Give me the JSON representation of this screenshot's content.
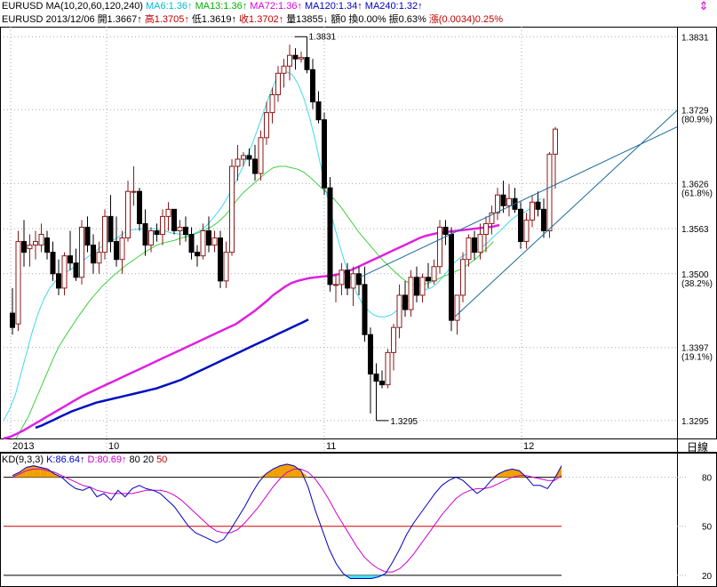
{
  "header": {
    "ma_title": "EURUSD MA(10,20,60,120,240)",
    "ma_values": [
      {
        "text": "MA6:1.36",
        "color": "#00bcd4"
      },
      {
        "text": "MA13:1.36",
        "color": "#00b000"
      },
      {
        "text": "MA72:1.36",
        "color": "#e000e0"
      },
      {
        "text": "MA120:1.34",
        "color": "#0000c0"
      },
      {
        "text": "MA240:1.32",
        "color": "#0000c0"
      }
    ],
    "quote": [
      {
        "text": "EURUSD 2013/12/06",
        "color": "#000000"
      },
      {
        "text": "開1.3667",
        "color": "#000000"
      },
      {
        "text": "高1.3705",
        "color": "#c00000"
      },
      {
        "text": "低1.3619",
        "color": "#000000"
      },
      {
        "text": "收1.3702",
        "color": "#c00000"
      },
      {
        "text": "量13855",
        "color": "#000000"
      },
      {
        "text": "額0",
        "color": "#000000"
      },
      {
        "text": "換0.00%",
        "color": "#000000"
      },
      {
        "text": "振0.63%",
        "color": "#000000"
      },
      {
        "text": "漲(0.0034)0.25%",
        "color": "#c00000"
      }
    ],
    "arrow_up": "↑",
    "arrow_down": "↓",
    "nav_icon": "chevron-up-down-icon",
    "nav_glyph": "⇕"
  },
  "kd": {
    "title": "KD(9,3,3)",
    "k": "K:86.64",
    "d": "D:80.69",
    "levels": "80 20 50",
    "k_color": "#0000c0",
    "d_color": "#d000d0",
    "levels_color": "#000000",
    "level50_color": "#c00000"
  },
  "daily_label": "日線",
  "colors": {
    "up": "#8b1a1a",
    "down": "#000000",
    "ma6": "#40d8f0",
    "ma13": "#40d040",
    "ma72": "#e020e0",
    "ma120": "#0010c0",
    "trend": "#1a6a9a",
    "fill_hi": "#f0a000",
    "fill_lo": "#40e0f0"
  },
  "chart_data": [
    {
      "type": "candlestick",
      "symbol": "EURUSD",
      "ylim": [
        1.327,
        1.3845
      ],
      "right_axis_ticks": [
        "1.3831",
        "1.3729",
        "(80.9%)",
        "1.3626",
        "(61.8%)",
        "1.3563",
        "1.3500",
        "(38.2%)",
        "1.3397",
        "(19.1%)",
        "1.3295"
      ],
      "x_labels": [
        "2013",
        "10",
        "11",
        "12"
      ],
      "annotations": [
        "1.3831",
        "1.3295"
      ],
      "candles": [
        [
          1.3445,
          1.348,
          1.3415,
          1.3425
        ],
        [
          1.343,
          1.356,
          1.342,
          1.3545
        ],
        [
          1.3545,
          1.3575,
          1.351,
          1.353
        ],
        [
          1.3535,
          1.3555,
          1.351,
          1.354
        ],
        [
          1.354,
          1.356,
          1.352,
          1.3545
        ],
        [
          1.354,
          1.357,
          1.353,
          1.3555
        ],
        [
          1.355,
          1.356,
          1.352,
          1.353
        ],
        [
          1.353,
          1.3545,
          1.349,
          1.35
        ],
        [
          1.35,
          1.352,
          1.347,
          1.348
        ],
        [
          1.348,
          1.353,
          1.347,
          1.3525
        ],
        [
          1.3525,
          1.356,
          1.3505,
          1.3515
        ],
        [
          1.3515,
          1.3535,
          1.349,
          1.3495
        ],
        [
          1.3495,
          1.3575,
          1.3485,
          1.3565
        ],
        [
          1.3565,
          1.358,
          1.353,
          1.354
        ],
        [
          1.354,
          1.3555,
          1.35,
          1.3515
        ],
        [
          1.3515,
          1.3545,
          1.35,
          1.353
        ],
        [
          1.353,
          1.359,
          1.352,
          1.358
        ],
        [
          1.358,
          1.361,
          1.353,
          1.3545
        ],
        [
          1.3545,
          1.358,
          1.351,
          1.352
        ],
        [
          1.352,
          1.356,
          1.35,
          1.355
        ],
        [
          1.355,
          1.363,
          1.3545,
          1.3615
        ],
        [
          1.3615,
          1.365,
          1.3595,
          1.3615
        ],
        [
          1.3615,
          1.362,
          1.356,
          1.357
        ],
        [
          1.357,
          1.359,
          1.3525,
          1.354
        ],
        [
          1.354,
          1.3565,
          1.353,
          1.356
        ],
        [
          1.356,
          1.357,
          1.3545,
          1.3555
        ],
        [
          1.3555,
          1.359,
          1.354,
          1.358
        ],
        [
          1.358,
          1.36,
          1.356,
          1.359
        ],
        [
          1.359,
          1.359,
          1.3555,
          1.356
        ],
        [
          1.356,
          1.3575,
          1.354,
          1.3565
        ],
        [
          1.3565,
          1.358,
          1.3545,
          1.3555
        ],
        [
          1.3555,
          1.3565,
          1.352,
          1.353
        ],
        [
          1.353,
          1.354,
          1.351,
          1.3525
        ],
        [
          1.3525,
          1.357,
          1.352,
          1.356
        ],
        [
          1.356,
          1.358,
          1.353,
          1.354
        ],
        [
          1.354,
          1.356,
          1.353,
          1.355
        ],
        [
          1.355,
          1.356,
          1.348,
          1.349
        ],
        [
          1.349,
          1.3545,
          1.348,
          1.353
        ],
        [
          1.353,
          1.366,
          1.3525,
          1.365
        ],
        [
          1.365,
          1.368,
          1.363,
          1.366
        ],
        [
          1.366,
          1.367,
          1.365,
          1.3665
        ],
        [
          1.3665,
          1.3675,
          1.365,
          1.366
        ],
        [
          1.366,
          1.368,
          1.363,
          1.364
        ],
        [
          1.364,
          1.37,
          1.363,
          1.369
        ],
        [
          1.369,
          1.374,
          1.368,
          1.3725
        ],
        [
          1.3725,
          1.376,
          1.371,
          1.375
        ],
        [
          1.375,
          1.379,
          1.374,
          1.378
        ],
        [
          1.378,
          1.38,
          1.376,
          1.379
        ],
        [
          1.379,
          1.382,
          1.377,
          1.3805
        ],
        [
          1.3805,
          1.3815,
          1.3785,
          1.38
        ],
        [
          1.38,
          1.381,
          1.3795,
          1.3802
        ],
        [
          1.3802,
          1.3831,
          1.378,
          1.3785
        ],
        [
          1.3785,
          1.38,
          1.373,
          1.374
        ],
        [
          1.374,
          1.3755,
          1.371,
          1.3715
        ],
        [
          1.3715,
          1.3725,
          1.361,
          1.362
        ],
        [
          1.362,
          1.3635,
          1.3475,
          1.3485
        ],
        [
          1.3485,
          1.35,
          1.346,
          1.3485
        ],
        [
          1.3485,
          1.3515,
          1.347,
          1.3505
        ],
        [
          1.3505,
          1.3515,
          1.347,
          1.348
        ],
        [
          1.348,
          1.351,
          1.3455,
          1.35
        ],
        [
          1.35,
          1.351,
          1.347,
          1.3485
        ],
        [
          1.3485,
          1.351,
          1.3405,
          1.3415
        ],
        [
          1.3415,
          1.3425,
          1.3305,
          1.336
        ],
        [
          1.336,
          1.3375,
          1.3295,
          1.335
        ],
        [
          1.335,
          1.3365,
          1.334,
          1.3345
        ],
        [
          1.3345,
          1.3395,
          1.334,
          1.339
        ],
        [
          1.339,
          1.343,
          1.3365,
          1.3425
        ],
        [
          1.3425,
          1.3485,
          1.341,
          1.347
        ],
        [
          1.347,
          1.349,
          1.344,
          1.345
        ],
        [
          1.345,
          1.3505,
          1.344,
          1.3495
        ],
        [
          1.3495,
          1.351,
          1.346,
          1.347
        ],
        [
          1.347,
          1.35,
          1.346,
          1.3495
        ],
        [
          1.3495,
          1.3515,
          1.348,
          1.349
        ],
        [
          1.349,
          1.352,
          1.3485,
          1.351
        ],
        [
          1.351,
          1.3575,
          1.35,
          1.3565
        ],
        [
          1.3565,
          1.3575,
          1.354,
          1.3555
        ],
        [
          1.3555,
          1.3565,
          1.342,
          1.3435
        ],
        [
          1.3435,
          1.347,
          1.3415,
          1.347
        ],
        [
          1.347,
          1.353,
          1.346,
          1.352
        ],
        [
          1.352,
          1.3555,
          1.351,
          1.355
        ],
        [
          1.355,
          1.356,
          1.352,
          1.353
        ],
        [
          1.353,
          1.357,
          1.352,
          1.3555
        ],
        [
          1.3555,
          1.358,
          1.353,
          1.357
        ],
        [
          1.357,
          1.3595,
          1.3555,
          1.3585
        ],
        [
          1.3585,
          1.362,
          1.3575,
          1.361
        ],
        [
          1.361,
          1.363,
          1.3585,
          1.3595
        ],
        [
          1.3595,
          1.3625,
          1.358,
          1.3605
        ],
        [
          1.3605,
          1.362,
          1.3585,
          1.359
        ],
        [
          1.359,
          1.36,
          1.3535,
          1.3545
        ],
        [
          1.3545,
          1.3585,
          1.3535,
          1.3575
        ],
        [
          1.3575,
          1.361,
          1.3565,
          1.36
        ],
        [
          1.36,
          1.3615,
          1.358,
          1.359
        ],
        [
          1.359,
          1.3605,
          1.355,
          1.356
        ],
        [
          1.356,
          1.367,
          1.355,
          1.3667
        ],
        [
          1.3667,
          1.3705,
          1.3619,
          1.3702
        ]
      ],
      "series": [
        {
          "name": "MA6",
          "values": [
            1.3295,
            1.331,
            1.333,
            1.336,
            1.339,
            1.342,
            1.3445,
            1.3465,
            1.348,
            1.349,
            1.3497,
            1.3503,
            1.3508,
            1.3514,
            1.352,
            1.3526,
            1.3532,
            1.3538,
            1.3543,
            1.3547,
            1.3552,
            1.3558,
            1.3561,
            1.3562,
            1.3563,
            1.3563,
            1.3563,
            1.3562,
            1.356,
            1.3557,
            1.3556,
            1.3555,
            1.3554,
            1.3556,
            1.356,
            1.3566,
            1.3575,
            1.3585,
            1.3596,
            1.361,
            1.3625,
            1.3642,
            1.366,
            1.368,
            1.3702,
            1.3725,
            1.3748,
            1.3768,
            1.378,
            1.3782,
            1.3778,
            1.3765,
            1.3745,
            1.3718,
            1.3685,
            1.3648,
            1.361,
            1.3575,
            1.3545,
            1.3518,
            1.3495,
            1.3475,
            1.346,
            1.345,
            1.3443,
            1.344,
            1.344,
            1.3442,
            1.3448,
            1.3455,
            1.3462,
            1.347,
            1.3475,
            1.3478,
            1.348,
            1.3486,
            1.3495,
            1.3505,
            1.3515,
            1.3522,
            1.3527,
            1.353,
            1.3534,
            1.3538,
            1.3545,
            1.3553,
            1.356,
            1.3568,
            1.3576,
            1.3582,
            1.3585,
            1.359,
            1.3598,
            1.3605
          ]
        },
        {
          "name": "MA13",
          "values": [
            1.327,
            1.3285,
            1.33,
            1.332,
            1.334,
            1.336,
            1.338,
            1.3398,
            1.3412,
            1.3425,
            1.3438,
            1.345,
            1.3462,
            1.3472,
            1.3482,
            1.349,
            1.3498,
            1.3505,
            1.3512,
            1.3518,
            1.3524,
            1.353,
            1.3535,
            1.354,
            1.3543,
            1.3545,
            1.3547,
            1.355,
            1.3552,
            1.3555,
            1.3558,
            1.3562,
            1.3566,
            1.3572,
            1.358,
            1.359,
            1.3602,
            1.3612,
            1.362,
            1.3627,
            1.3635,
            1.3642,
            1.3648,
            1.365,
            1.365,
            1.3648,
            1.3646,
            1.3642,
            1.3635,
            1.3627,
            1.3619,
            1.3612,
            1.3604,
            1.3594,
            1.3582,
            1.357,
            1.3558,
            1.3548,
            1.3538,
            1.3528,
            1.3518,
            1.351,
            1.3502,
            1.3494,
            1.3488,
            1.3485,
            1.3484,
            1.3486,
            1.3489,
            1.3493,
            1.3497,
            1.35,
            1.3504,
            1.3508,
            1.3514,
            1.352,
            1.3528,
            1.3536,
            1.3545
          ]
        },
        {
          "name": "MA72",
          "values": [
            1.327,
            1.3272,
            1.3276,
            1.328,
            1.3285,
            1.329,
            1.3295,
            1.33,
            1.3305,
            1.331,
            1.3315,
            1.332,
            1.3325,
            1.333,
            1.3334,
            1.3338,
            1.3342,
            1.3346,
            1.335,
            1.3354,
            1.3358,
            1.3362,
            1.3366,
            1.337,
            1.3374,
            1.3378,
            1.3382,
            1.3386,
            1.339,
            1.3394,
            1.3398,
            1.3402,
            1.3406,
            1.341,
            1.3414,
            1.3418,
            1.3422,
            1.3426,
            1.343,
            1.3436,
            1.3442,
            1.3448,
            1.3455,
            1.3462,
            1.347,
            1.3476,
            1.3482,
            1.3487,
            1.349,
            1.3492,
            1.3494,
            1.3495,
            1.3496,
            1.3497,
            1.3498,
            1.35,
            1.3503,
            1.3506,
            1.351,
            1.3514,
            1.3518,
            1.3522,
            1.3526,
            1.353,
            1.3534,
            1.3538,
            1.3542,
            1.3546,
            1.355,
            1.3553,
            1.3555,
            1.3557,
            1.3558,
            1.3559,
            1.356,
            1.3561,
            1.3562,
            1.3563,
            1.3564,
            1.3565,
            1.3566,
            1.3568
          ]
        },
        {
          "name": "MA120",
          "values": [
            1.3285,
            1.3288,
            1.3292,
            1.3296,
            1.33,
            1.3304,
            1.3308,
            1.3311,
            1.3314,
            1.3317,
            1.332,
            1.3322,
            1.3324,
            1.3326,
            1.3328,
            1.333,
            1.3332,
            1.3334,
            1.3336,
            1.3338,
            1.334,
            1.3343,
            1.3346,
            1.3349,
            1.3352,
            1.3356,
            1.336,
            1.3364,
            1.3368,
            1.3372,
            1.3376,
            1.338,
            1.3384,
            1.3388,
            1.3392,
            1.3396,
            1.34,
            1.3404,
            1.3408,
            1.3412,
            1.3416,
            1.342,
            1.3424,
            1.3428,
            1.3432,
            1.3436
          ]
        }
      ]
    },
    {
      "type": "line",
      "title": "KD(9,3,3)",
      "ylim": [
        15,
        95
      ],
      "y_ticks": [
        20,
        50,
        80
      ],
      "series": [
        {
          "name": "K",
          "values": [
            81,
            83,
            86,
            87,
            86,
            85,
            82,
            80,
            76,
            73,
            72,
            74,
            68,
            70,
            66,
            72,
            68,
            73,
            75,
            73,
            72,
            70,
            66,
            62,
            56,
            50,
            46,
            44,
            42,
            40,
            42,
            48,
            55,
            62,
            70,
            77,
            82,
            85,
            87,
            88,
            87,
            84,
            74,
            60,
            48,
            36,
            27,
            21,
            18,
            18,
            18,
            18,
            19,
            21,
            28,
            36,
            45,
            52,
            58,
            64,
            70,
            75,
            78,
            80,
            78,
            74,
            70,
            73,
            78,
            82,
            84,
            85,
            84,
            80,
            75,
            75,
            73,
            79,
            87
          ]
        },
        {
          "name": "D",
          "values": [
            80,
            82,
            84,
            85,
            85,
            84,
            83,
            81,
            79,
            77,
            75,
            74,
            72,
            71,
            70,
            70,
            70,
            70,
            71,
            72,
            72,
            72,
            71,
            69,
            66,
            62,
            58,
            54,
            50,
            47,
            46,
            46,
            48,
            52,
            57,
            62,
            68,
            74,
            79,
            83,
            85,
            85,
            83,
            79,
            73,
            66,
            58,
            51,
            44,
            37,
            31,
            27,
            24,
            22,
            22,
            24,
            28,
            33,
            39,
            45,
            51,
            57,
            62,
            67,
            70,
            72,
            73,
            73,
            74,
            76,
            78,
            80,
            81,
            81,
            80,
            79,
            78,
            78,
            81
          ]
        }
      ]
    }
  ]
}
